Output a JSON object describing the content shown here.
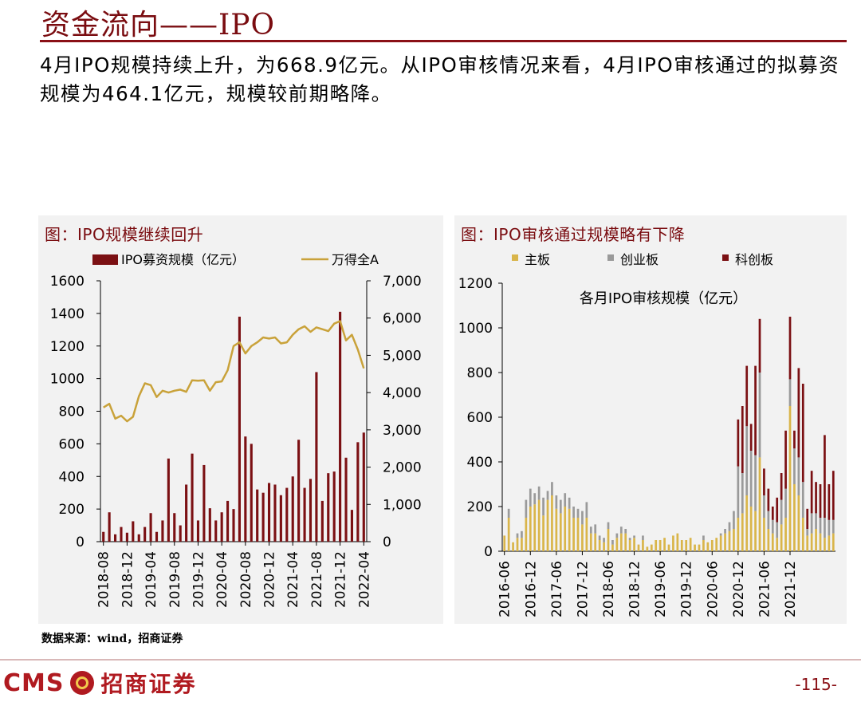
{
  "page": {
    "title": "资金流向——IPO",
    "summary": "4月IPO规模持续上升，为668.9亿元。从IPO审核情况来看，4月IPO审核通过的拟募资规模为464.1亿元，规模较前期略降。",
    "source": "数据来源：wind，招商证券",
    "brand_cms": "CMS",
    "brand_cn": "招商证券",
    "page_number": "-115-"
  },
  "colors": {
    "accent": "#7a0c10",
    "bar_ipo": "#7b1013",
    "line_wande": "#c9a23a",
    "main_board": "#d9b54a",
    "chinext": "#9a9a9a",
    "star_board": "#7b1013"
  },
  "chart_data": [
    {
      "type": "bar",
      "title": "图：IPO规模继续回升",
      "legend": [
        "IPO募资规模（亿元）",
        "万得全A"
      ],
      "legend_position": "top",
      "categories": [
        "2018-08",
        "2018-09",
        "2018-10",
        "2018-11",
        "2018-12",
        "2019-01",
        "2019-02",
        "2019-03",
        "2019-04",
        "2019-05",
        "2019-06",
        "2019-07",
        "2019-08",
        "2019-09",
        "2019-10",
        "2019-11",
        "2019-12",
        "2020-01",
        "2020-02",
        "2020-03",
        "2020-04",
        "2020-05",
        "2020-06",
        "2020-07",
        "2020-08",
        "2020-09",
        "2020-10",
        "2020-11",
        "2020-12",
        "2021-01",
        "2021-02",
        "2021-03",
        "2021-04",
        "2021-05",
        "2021-06",
        "2021-07",
        "2021-08",
        "2021-09",
        "2021-10",
        "2021-11",
        "2021-12",
        "2022-01",
        "2022-02",
        "2022-03",
        "2022-04"
      ],
      "x_tick_labels": [
        "2018-08",
        "2018-12",
        "2019-04",
        "2019-08",
        "2019-12",
        "2020-04",
        "2020-08",
        "2020-12",
        "2021-04",
        "2021-08",
        "2021-12",
        "2022-04"
      ],
      "series": [
        {
          "name": "IPO募资规模（亿元）",
          "axis": "left",
          "kind": "bar",
          "values": [
            60,
            180,
            45,
            90,
            55,
            125,
            45,
            90,
            175,
            60,
            130,
            510,
            175,
            100,
            350,
            540,
            130,
            470,
            205,
            130,
            180,
            250,
            200,
            1380,
            645,
            600,
            320,
            300,
            360,
            350,
            285,
            330,
            400,
            625,
            330,
            385,
            1040,
            250,
            420,
            430,
            1410,
            515,
            195,
            610,
            669
          ]
        },
        {
          "name": "万得全A",
          "axis": "right",
          "kind": "line",
          "values": [
            3600,
            3700,
            3300,
            3380,
            3230,
            3350,
            3900,
            4250,
            4200,
            3880,
            4050,
            4000,
            4050,
            4080,
            4020,
            4330,
            4320,
            4330,
            4050,
            4280,
            4300,
            4600,
            5250,
            5350,
            5050,
            5250,
            5350,
            5480,
            5450,
            5480,
            5320,
            5350,
            5550,
            5700,
            5780,
            5630,
            5750,
            5700,
            5650,
            5850,
            5920,
            5400,
            5550,
            5150,
            4650
          ]
        }
      ],
      "ylim_left": [
        0,
        1600
      ],
      "yticks_left": [
        "0",
        "200",
        "400",
        "600",
        "800",
        "1000",
        "1200",
        "1400",
        "1600"
      ],
      "ylim_right": [
        0,
        7000
      ],
      "yticks_right": [
        "0",
        "1,000",
        "2,000",
        "3,000",
        "4,000",
        "5,000",
        "6,000",
        "7,000"
      ]
    },
    {
      "type": "bar",
      "stacked": true,
      "title": "图：IPO审核通过规模略有下降",
      "subtitle": "各月IPO审核规模（亿元）",
      "legend": [
        "主板",
        "创业板",
        "科创板"
      ],
      "legend_position": "top",
      "x_tick_labels": [
        "2016-06",
        "2016-12",
        "2017-06",
        "2017-12",
        "2018-06",
        "2018-12",
        "2019-06",
        "2019-12",
        "2020-06",
        "2020-12",
        "2021-06",
        "2021-12"
      ],
      "series": [
        {
          "name": "主板",
          "values": [
            70,
            150,
            40,
            60,
            60,
            150,
            200,
            210,
            230,
            160,
            230,
            250,
            190,
            170,
            200,
            190,
            150,
            150,
            120,
            150,
            80,
            80,
            50,
            40,
            100,
            30,
            60,
            80,
            80,
            50,
            60,
            30,
            50,
            20,
            30,
            50,
            50,
            60,
            30,
            70,
            80,
            50,
            50,
            60,
            30,
            30,
            50,
            40,
            50,
            60,
            70,
            80,
            90,
            100,
            150,
            170,
            250,
            200,
            180,
            420,
            150,
            100,
            80,
            60,
            120,
            150,
            650,
            300,
            250,
            150,
            70,
            80,
            100,
            80,
            60,
            70,
            80
          ]
        },
        {
          "name": "创业板",
          "values": [
            0,
            40,
            0,
            20,
            30,
            80,
            80,
            50,
            60,
            80,
            40,
            60,
            60,
            60,
            60,
            50,
            50,
            40,
            60,
            70,
            30,
            40,
            20,
            20,
            30,
            20,
            20,
            30,
            20,
            10,
            10,
            0,
            20,
            0,
            0,
            0,
            0,
            0,
            0,
            0,
            0,
            0,
            0,
            0,
            0,
            0,
            20,
            0,
            0,
            0,
            10,
            20,
            40,
            80,
            230,
            180,
            310,
            250,
            250,
            380,
            100,
            80,
            60,
            70,
            110,
            130,
            120,
            160,
            170,
            160,
            30,
            90,
            70,
            70,
            90,
            70,
            60
          ]
        },
        {
          "name": "科创板",
          "values": [
            0,
            0,
            0,
            0,
            0,
            0,
            0,
            0,
            0,
            0,
            0,
            0,
            0,
            0,
            0,
            0,
            0,
            0,
            0,
            0,
            0,
            0,
            0,
            0,
            0,
            0,
            0,
            0,
            0,
            0,
            0,
            0,
            0,
            0,
            0,
            0,
            0,
            0,
            0,
            0,
            0,
            0,
            0,
            0,
            0,
            0,
            0,
            0,
            0,
            0,
            0,
            0,
            0,
            0,
            210,
            300,
            270,
            120,
            400,
            240,
            120,
            100,
            60,
            110,
            120,
            260,
            280,
            80,
            400,
            440,
            90,
            190,
            140,
            150,
            370,
            160,
            220
          ]
        }
      ],
      "ylim": [
        0,
        1200
      ],
      "yticks": [
        "0",
        "200",
        "400",
        "600",
        "800",
        "1000",
        "1200"
      ]
    }
  ]
}
